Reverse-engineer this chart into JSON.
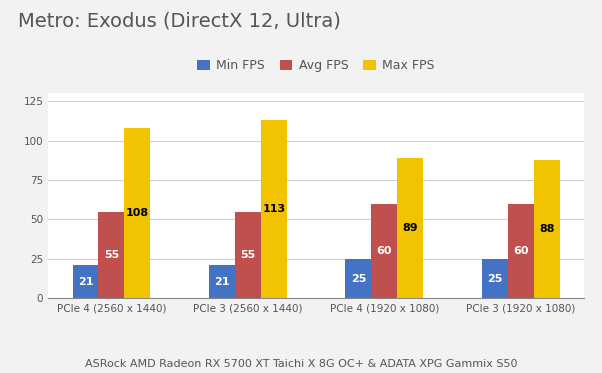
{
  "title": "Metro: Exodus (DirectX 12, Ultra)",
  "subtitle": "ASRock AMD Radeon RX 5700 XT Taichi X 8G OC+ & ADATA XPG Gammix S50",
  "categories": [
    "PCIe 4 (2560 x 1440)",
    "PCIe 3 (2560 x 1440)",
    "PCIe 4 (1920 x 1080)",
    "PCIe 3 (1920 x 1080)"
  ],
  "series": [
    {
      "label": "Min FPS",
      "color": "#4472C4",
      "values": [
        21,
        21,
        25,
        25
      ],
      "text_color": "white"
    },
    {
      "label": "Avg FPS",
      "color": "#C0504D",
      "values": [
        55,
        55,
        60,
        60
      ],
      "text_color": "white"
    },
    {
      "label": "Max FPS",
      "color": "#F2C300",
      "values": [
        108,
        113,
        89,
        88
      ],
      "text_color": "black"
    }
  ],
  "ylim": [
    0,
    130
  ],
  "yticks": [
    0,
    25,
    50,
    75,
    100,
    125
  ],
  "background_color": "#F2F2F2",
  "plot_background_color": "#FFFFFF",
  "title_fontsize": 14,
  "subtitle_fontsize": 8,
  "tick_fontsize": 7.5,
  "legend_fontsize": 9,
  "bar_value_fontsize": 8,
  "grid_color": "#D0D0D0",
  "bar_width": 0.19
}
